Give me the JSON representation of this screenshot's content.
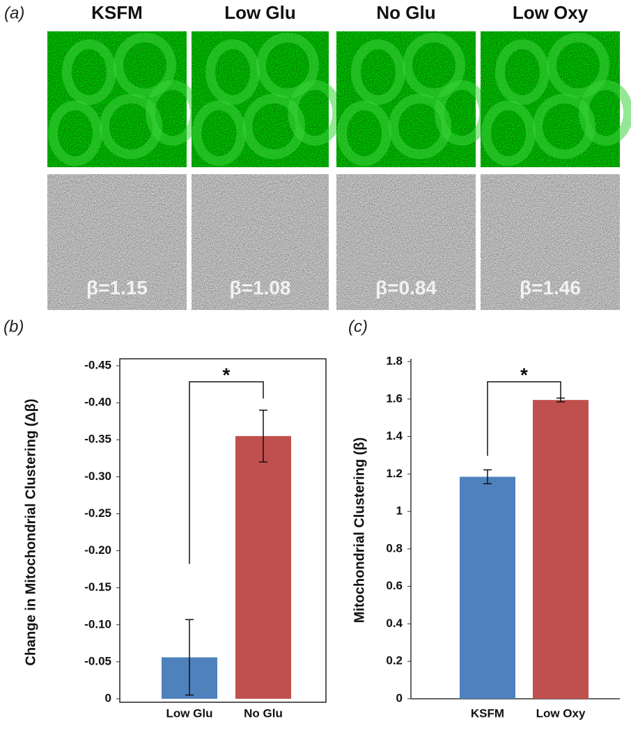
{
  "panel_a": {
    "label": "(a)",
    "conditions": [
      {
        "name": "KSFM",
        "beta": "β=1.15"
      },
      {
        "name": "Low Glu",
        "beta": "β=1.08"
      },
      {
        "name": "No Glu",
        "beta": "β=0.84"
      },
      {
        "name": "Low Oxy",
        "beta": "β=1.46"
      }
    ]
  },
  "chart_data": [
    {
      "type": "bar",
      "panel_label": "(b)",
      "y_label": "Change in Mitochondrial Clustering (Δβ)",
      "categories": [
        "Low Glu",
        "No Glu"
      ],
      "values": [
        -0.056,
        -0.355
      ],
      "errors": [
        0.051,
        0.035
      ],
      "colors": [
        "#4f81bd",
        "#c0504d"
      ],
      "frame": true,
      "ylim": [
        0,
        -0.45
      ],
      "yticks": [
        0,
        -0.05,
        {
          "value": -0.1,
          "label": "-0.10"
        },
        -0.15,
        {
          "value": -0.2,
          "label": "-0.20"
        },
        -0.25,
        {
          "value": -0.3,
          "label": "-0.30"
        },
        -0.35,
        {
          "value": -0.4,
          "label": "-0.40"
        },
        -0.45
      ],
      "annotation": "*"
    },
    {
      "type": "bar",
      "panel_label": "(c)",
      "y_label": "Mitochondrial Clustering (β)",
      "categories": [
        "KSFM",
        "Low Oxy"
      ],
      "values": [
        1.185,
        1.595
      ],
      "errors": [
        0.037,
        0.01
      ],
      "colors": [
        "#4f81bd",
        "#c0504d"
      ],
      "frame": false,
      "ylim": [
        0,
        1.8
      ],
      "yticks": [
        0,
        0.2,
        0.4,
        0.6,
        0.8,
        1,
        1.2,
        1.4,
        1.6,
        1.8
      ],
      "annotation": "*"
    }
  ]
}
